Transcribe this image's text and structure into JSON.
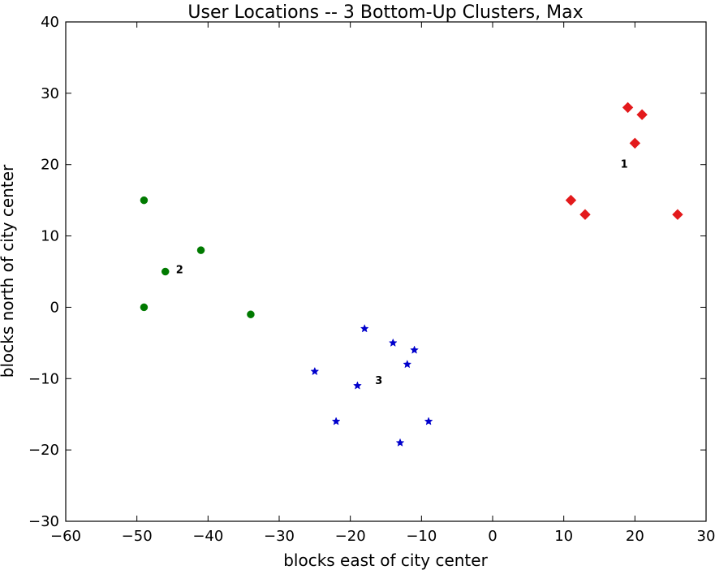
{
  "chart_data": {
    "type": "scatter",
    "title": "User Locations -- 3 Bottom-Up Clusters, Max",
    "xlabel": "blocks east of city center",
    "ylabel": "blocks north of city center",
    "xlim": [
      -60,
      30
    ],
    "ylim": [
      -30,
      40
    ],
    "xticks": [
      -60,
      -50,
      -40,
      -30,
      -20,
      -10,
      0,
      10,
      20,
      30
    ],
    "yticks": [
      -30,
      -20,
      -10,
      0,
      10,
      20,
      30,
      40
    ],
    "xtick_labels": [
      "−60",
      "−50",
      "−40",
      "−30",
      "−20",
      "−10",
      "0",
      "10",
      "20",
      "30"
    ],
    "ytick_labels": [
      "−30",
      "−20",
      "−10",
      "0",
      "10",
      "20",
      "30",
      "40"
    ],
    "grid": false,
    "legend": false,
    "series": [
      {
        "color": "#e31a1c",
        "marker": "diamond",
        "points": [
          [
            19,
            28
          ],
          [
            21,
            27
          ],
          [
            20,
            23
          ],
          [
            11,
            15
          ],
          [
            13,
            13
          ],
          [
            26,
            13
          ]
        ]
      },
      {
        "color": "#007a00",
        "marker": "circle",
        "points": [
          [
            -49,
            15
          ],
          [
            -41,
            8
          ],
          [
            -46,
            5
          ],
          [
            -49,
            0
          ],
          [
            -34,
            -1
          ]
        ]
      },
      {
        "color": "#0000cc",
        "marker": "star",
        "points": [
          [
            -18,
            -3
          ],
          [
            -14,
            -5
          ],
          [
            -11,
            -6
          ],
          [
            -12,
            -8
          ],
          [
            -25,
            -9
          ],
          [
            -19,
            -11
          ],
          [
            -22,
            -16
          ],
          [
            -9,
            -16
          ],
          [
            -13,
            -19
          ]
        ]
      }
    ],
    "annotations": [
      {
        "text": "1",
        "x": 18.5,
        "y": 20
      },
      {
        "text": "2",
        "x": -44,
        "y": 5.2
      },
      {
        "text": "3",
        "x": -16,
        "y": -10.3
      }
    ]
  }
}
